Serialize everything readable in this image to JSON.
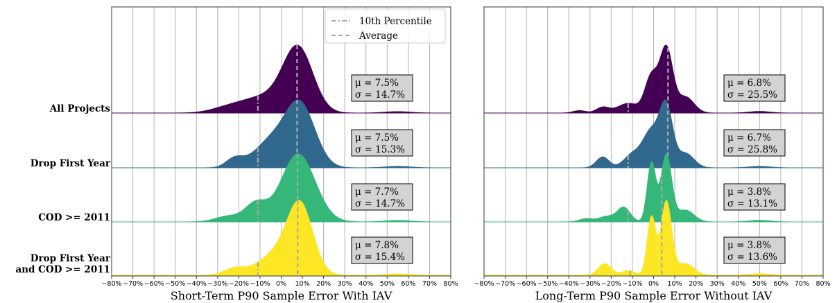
{
  "chart_data": [
    {
      "type": "area",
      "xlabel": "Short-Term P90 Sample Error With IAV",
      "xlim": [
        -80,
        80
      ],
      "xticks": [
        -80,
        -70,
        -60,
        -50,
        -40,
        -30,
        -20,
        -10,
        0,
        10,
        20,
        30,
        40,
        50,
        60,
        70,
        80
      ],
      "tick_suffix": "%",
      "grid": true,
      "categories": [
        "All Projects",
        "Drop First Year",
        "COD >= 2011",
        "Drop First Year and COD >= 2011"
      ],
      "series": [
        {
          "name": "All Projects",
          "color": "#440154",
          "mean": 7.5,
          "p10": -11.0,
          "stats": [
            "μ = 7.5%",
            "σ = 14.7%"
          ],
          "components": [
            [
              8,
              7,
              0.9
            ],
            [
              -8,
              10,
              0.22
            ],
            [
              -25,
              8,
              0.07
            ],
            [
              55,
              6,
              0.02
            ]
          ]
        },
        {
          "name": "Drop First Year",
          "color": "#31688e",
          "mean": 7.5,
          "p10": -11.0,
          "stats": [
            "μ = 7.5%",
            "σ = 15.3%"
          ],
          "components": [
            [
              9,
              7,
              0.85
            ],
            [
              -5,
              8,
              0.35
            ],
            [
              -22,
              4,
              0.12
            ],
            [
              55,
              6,
              0.02
            ]
          ]
        },
        {
          "name": "COD >= 2011",
          "color": "#35b779",
          "mean": 7.7,
          "p10": -11.0,
          "stats": [
            "μ = 7.7%",
            "σ = 14.7%"
          ],
          "components": [
            [
              8,
              8,
              0.95
            ],
            [
              -12,
              5,
              0.25
            ],
            [
              -25,
              6,
              0.08
            ],
            [
              55,
              6,
              0.02
            ]
          ]
        },
        {
          "name": "Drop First Year and COD >= 2011",
          "color": "#fde725",
          "mean": 7.8,
          "p10": -11.0,
          "stats": [
            "μ = 7.8%",
            "σ = 15.4%"
          ],
          "components": [
            [
              9,
              6,
              1.0
            ],
            [
              -3,
              8,
              0.3
            ],
            [
              -22,
              5,
              0.1
            ],
            [
              55,
              6,
              0.02
            ]
          ]
        }
      ],
      "legend": {
        "placement": "top-right",
        "entries": [
          "10th Percentile",
          "Average"
        ]
      }
    },
    {
      "type": "area",
      "xlabel": "Long-Term P90 Sample Error Without IAV",
      "xlim": [
        -80,
        80
      ],
      "xticks": [
        -80,
        -70,
        -60,
        -50,
        -40,
        -30,
        -20,
        -10,
        0,
        10,
        20,
        30,
        40,
        50,
        60,
        70,
        80
      ],
      "tick_suffix": "%",
      "grid": true,
      "categories": [
        "All Projects",
        "Drop First Year",
        "COD >= 2011",
        "Drop First Year and COD >= 2011"
      ],
      "series": [
        {
          "name": "All Projects",
          "color": "#440154",
          "mean": 6.8,
          "p10": -12.0,
          "stats": [
            "μ = 6.8%",
            "σ = 25.5%"
          ],
          "components": [
            [
              6,
              3,
              0.8
            ],
            [
              -1,
              3,
              0.45
            ],
            [
              15,
              4,
              0.2
            ],
            [
              -12,
              5,
              0.12
            ],
            [
              -24,
              3,
              0.07
            ],
            [
              -35,
              3,
              0.03
            ],
            [
              50,
              5,
              0.02
            ]
          ]
        },
        {
          "name": "Drop First Year",
          "color": "#31688e",
          "mean": 6.7,
          "p10": -12.0,
          "stats": [
            "μ = 6.7%",
            "σ = 25.8%"
          ],
          "components": [
            [
              6,
              3,
              0.8
            ],
            [
              -1,
              4,
              0.5
            ],
            [
              15,
              4,
              0.2
            ],
            [
              -10,
              4,
              0.18
            ],
            [
              -24,
              3,
              0.15
            ],
            [
              50,
              5,
              0.02
            ]
          ]
        },
        {
          "name": "COD >= 2011",
          "color": "#35b779",
          "mean": 3.8,
          "p10": -12.0,
          "stats": [
            "μ = 3.8%",
            "σ = 13.1%"
          ],
          "components": [
            [
              6,
              2.5,
              0.85
            ],
            [
              -1,
              2,
              0.75
            ],
            [
              15,
              4,
              0.15
            ],
            [
              -14,
              3,
              0.18
            ],
            [
              -22,
              4,
              0.07
            ],
            [
              -32,
              3,
              0.04
            ],
            [
              50,
              5,
              0.02
            ]
          ]
        },
        {
          "name": "Drop First Year and COD >= 2011",
          "color": "#fde725",
          "mean": 3.8,
          "p10": -11.0,
          "stats": [
            "μ = 3.8%",
            "σ = 13.6%"
          ],
          "components": [
            [
              6,
              2.5,
              0.95
            ],
            [
              -1,
              2,
              0.75
            ],
            [
              15,
              4,
              0.15
            ],
            [
              -23,
              3,
              0.15
            ],
            [
              -12,
              3,
              0.06
            ],
            [
              50,
              5,
              0.02
            ]
          ]
        }
      ]
    }
  ]
}
